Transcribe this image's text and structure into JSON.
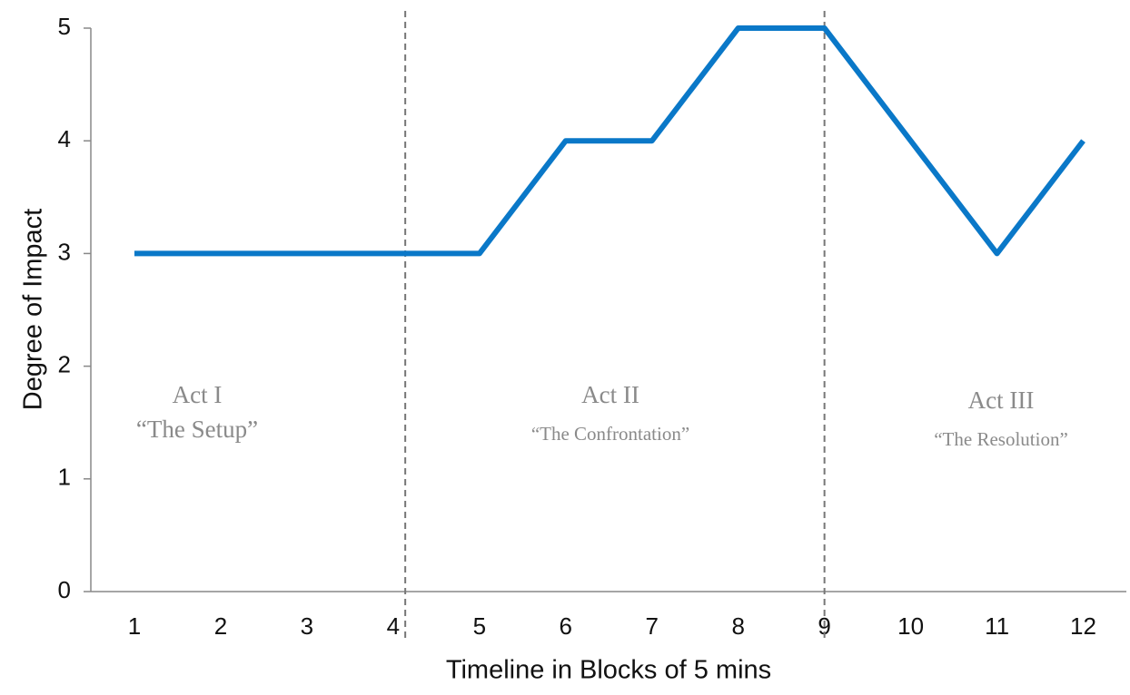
{
  "chart_data": {
    "type": "line",
    "x_label": "Timeline in Blocks of 5 mins",
    "y_label": "Degree of Impact",
    "categories": [
      "1",
      "2",
      "3",
      "4",
      "5",
      "6",
      "7",
      "8",
      "9",
      "10",
      "11",
      "12"
    ],
    "values": [
      3,
      3,
      3,
      3,
      3,
      4,
      4,
      5,
      5,
      4,
      3,
      4
    ],
    "color": "#0a78c8",
    "ylim": [
      0,
      5
    ],
    "yticks": [
      0,
      1,
      2,
      3,
      4,
      5
    ],
    "act_dividers": [
      4.14,
      9
    ],
    "annotations": [
      {
        "title": "Act I",
        "subtitle": "“The Setup”"
      },
      {
        "title": "Act II",
        "subtitle": "“The Confrontation”"
      },
      {
        "title": "Act III",
        "subtitle": "“The Resolution”"
      }
    ]
  }
}
